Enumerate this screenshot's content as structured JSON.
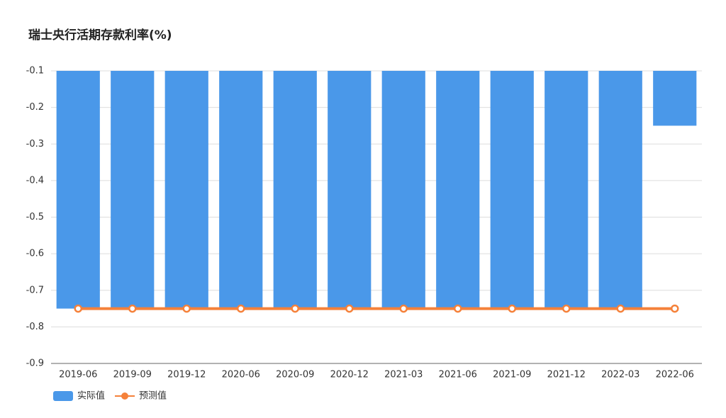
{
  "chart_data": {
    "type": "bar",
    "title": "瑞士央行活期存款利率(%)",
    "categories": [
      "2019-06",
      "2019-09",
      "2019-12",
      "2020-06",
      "2020-09",
      "2020-12",
      "2021-03",
      "2021-06",
      "2021-09",
      "2021-12",
      "2022-03",
      "2022-06"
    ],
    "series": [
      {
        "name": "实际值",
        "type": "bar",
        "color": "#4a98e9",
        "values": [
          -0.75,
          -0.75,
          -0.75,
          -0.75,
          -0.75,
          -0.75,
          -0.75,
          -0.75,
          -0.75,
          -0.75,
          -0.75,
          -0.25
        ]
      },
      {
        "name": "预测值",
        "type": "line",
        "color": "#f5813a",
        "values": [
          -0.75,
          -0.75,
          -0.75,
          -0.75,
          -0.75,
          -0.75,
          -0.75,
          -0.75,
          -0.75,
          -0.75,
          -0.75,
          -0.75
        ]
      }
    ],
    "ylim": [
      -0.9,
      -0.1
    ],
    "yticks": [
      -0.1,
      -0.2,
      -0.3,
      -0.4,
      -0.5,
      -0.6,
      -0.7,
      -0.8,
      -0.9
    ],
    "grid": true
  }
}
